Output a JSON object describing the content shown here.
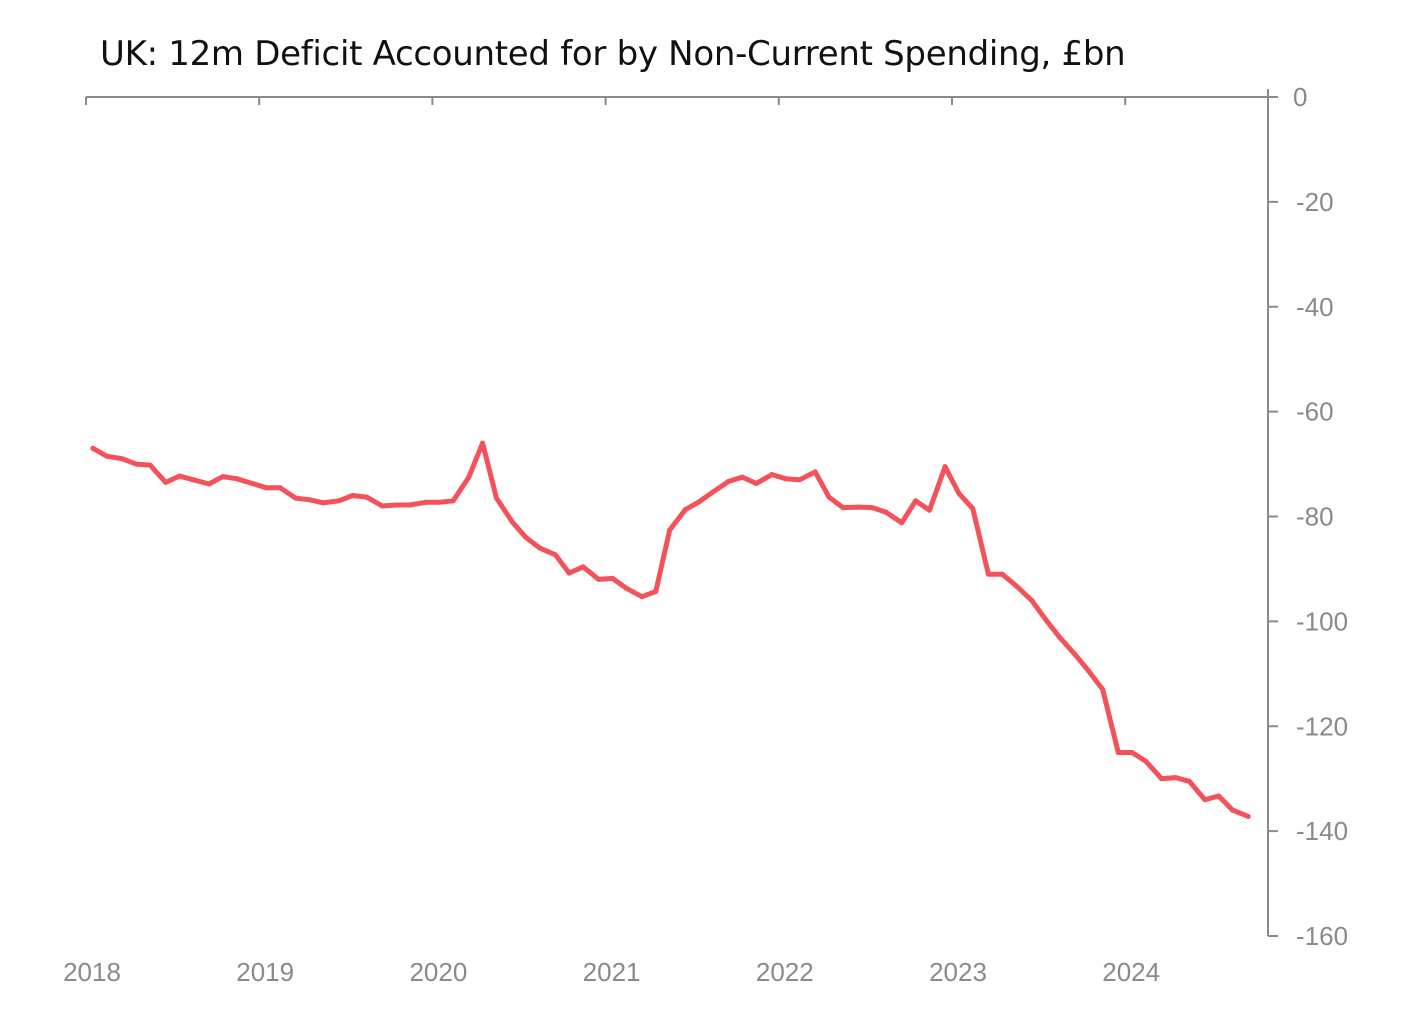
{
  "chart_data": {
    "type": "line",
    "title": "UK: 12m Deficit Accounted for by Non-Current Spending, £bn",
    "xlabel": "",
    "ylabel": "",
    "x_tick_labels": [
      "2018",
      "2019",
      "2020",
      "2021",
      "2022",
      "2023",
      "2024"
    ],
    "x_range": [
      2018.0,
      2024.83
    ],
    "y_tick_labels": [
      "0",
      "-20",
      "-40",
      "-60",
      "-80",
      "-100",
      "-120",
      "-140",
      "-160"
    ],
    "y_ticks": [
      0,
      -20,
      -40,
      -60,
      -80,
      -100,
      -120,
      -140,
      -160
    ],
    "ylim": [
      -160,
      0
    ],
    "y_axis_position": "right",
    "x_axis_position": "top",
    "grid": false,
    "legend": "none",
    "series": [
      {
        "color": "#f4525a",
        "x": [
          2018.04,
          2018.12,
          2018.21,
          2018.29,
          2018.37,
          2018.46,
          2018.54,
          2018.62,
          2018.71,
          2018.79,
          2018.87,
          2018.96,
          2019.04,
          2019.12,
          2019.21,
          2019.29,
          2019.37,
          2019.46,
          2019.54,
          2019.62,
          2019.71,
          2019.79,
          2019.87,
          2019.96,
          2020.04,
          2020.12,
          2020.21,
          2020.29,
          2020.37,
          2020.46,
          2020.54,
          2020.62,
          2020.71,
          2020.79,
          2020.87,
          2020.96,
          2021.04,
          2021.12,
          2021.21,
          2021.29,
          2021.37,
          2021.46,
          2021.54,
          2021.62,
          2021.71,
          2021.79,
          2021.87,
          2021.96,
          2022.04,
          2022.12,
          2022.21,
          2022.29,
          2022.37,
          2022.46,
          2022.54,
          2022.62,
          2022.71,
          2022.79,
          2022.87,
          2022.96,
          2023.04,
          2023.12,
          2023.21,
          2023.29,
          2023.37,
          2023.46,
          2023.54,
          2023.62,
          2023.71,
          2023.79,
          2023.87,
          2023.96,
          2024.04,
          2024.12,
          2024.21,
          2024.29,
          2024.37,
          2024.46,
          2024.54,
          2024.62,
          2024.71
        ],
        "y": [
          -67,
          -68.5,
          -69,
          -70,
          -70.2,
          -73.5,
          -72.3,
          -73,
          -73.8,
          -72.4,
          -72.8,
          -73.7,
          -74.5,
          -74.5,
          -76.5,
          -76.8,
          -77.4,
          -77,
          -76,
          -76.3,
          -78,
          -77.8,
          -77.8,
          -77.3,
          -77.3,
          -77,
          -72.5,
          -66,
          -76.5,
          -81,
          -84,
          -86,
          -87.3,
          -90.8,
          -89.6,
          -92,
          -91.8,
          -93.7,
          -95.3,
          -94.3,
          -82.6,
          -78.7,
          -77.2,
          -75.3,
          -73.3,
          -72.5,
          -73.7,
          -72,
          -72.8,
          -73,
          -71.5,
          -76.3,
          -78.3,
          -78.2,
          -78.3,
          -79.2,
          -81.2,
          -77,
          -78.8,
          -70.5,
          -75.6,
          -78.5,
          -91,
          -91,
          -93.2,
          -96,
          -99.6,
          -103,
          -106.3,
          -109.5,
          -113,
          -125,
          -125,
          -126.7,
          -130,
          -129.8,
          -130.5,
          -134,
          -133.3,
          -136,
          -137.2
        ]
      }
    ]
  }
}
